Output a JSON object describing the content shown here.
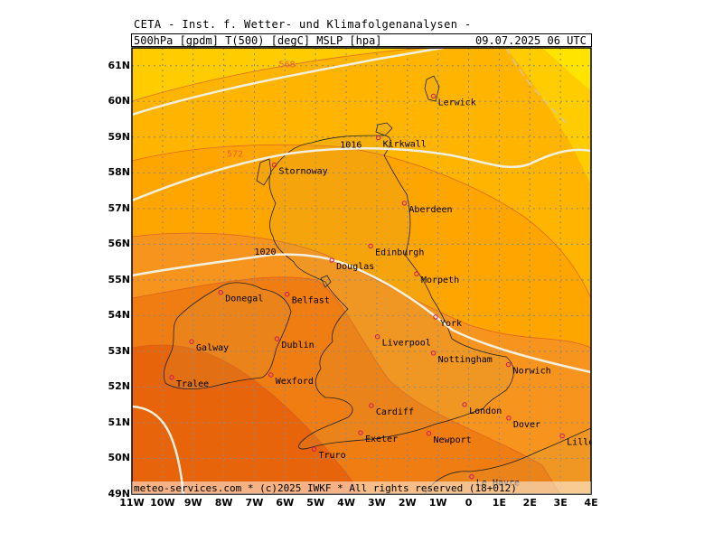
{
  "header": {
    "title": "CETA - Inst. f. Wetter- und Klimafolgenanalysen -",
    "parameters": "500hPa [gpdm] T(500) [degC] MSLP [hpa]",
    "valid_time": "09.07.2025 06 UTC"
  },
  "footer": {
    "credit": "meteo-services.com * (c)2025 IWKF * All rights reserved (18+012)"
  },
  "axes": {
    "lat_labels": [
      "61N",
      "60N",
      "59N",
      "58N",
      "57N",
      "56N",
      "55N",
      "54N",
      "53N",
      "52N",
      "51N",
      "50N",
      "49N"
    ],
    "lon_labels": [
      "11W",
      "10W",
      "9W",
      "8W",
      "7W",
      "6W",
      "5W",
      "4W",
      "3W",
      "2W",
      "1W",
      "0",
      "1E",
      "2E",
      "3E",
      "4E"
    ],
    "lat_values": [
      61,
      60,
      59,
      58,
      57,
      56,
      55,
      54,
      53,
      52,
      51,
      50,
      49
    ],
    "lon_values": [
      -11,
      -10,
      -9,
      -8,
      -7,
      -6,
      -5,
      -4,
      -3,
      -2,
      -1,
      0,
      1,
      2,
      3,
      4
    ],
    "lat_range": [
      49,
      61.5
    ],
    "lon_range": [
      -11,
      4
    ]
  },
  "contour_labels": {
    "geopotential": [
      {
        "text": "568",
        "lon": -6.2,
        "lat": 60.95
      },
      {
        "text": "572",
        "lon": -7.9,
        "lat": 58.45
      }
    ],
    "pressure": [
      {
        "text": "1016",
        "lon": -4.2,
        "lat": 58.7
      },
      {
        "text": "1020",
        "lon": -7.0,
        "lat": 55.7
      }
    ]
  },
  "cities": [
    {
      "name": "Lerwick",
      "lon": -1.15,
      "lat": 60.15
    },
    {
      "name": "Kirkwall",
      "lon": -2.95,
      "lat": 58.98
    },
    {
      "name": "Stornoway",
      "lon": -6.35,
      "lat": 58.22
    },
    {
      "name": "Aberdeen",
      "lon": -2.1,
      "lat": 57.15
    },
    {
      "name": "Edinburgh",
      "lon": -3.2,
      "lat": 55.95
    },
    {
      "name": "Douglas",
      "lon": -4.47,
      "lat": 55.55
    },
    {
      "name": "Morpeth",
      "lon": -1.7,
      "lat": 55.17
    },
    {
      "name": "Donegal",
      "lon": -8.1,
      "lat": 54.65
    },
    {
      "name": "Belfast",
      "lon": -5.93,
      "lat": 54.6
    },
    {
      "name": "York",
      "lon": -1.08,
      "lat": 53.96
    },
    {
      "name": "Liverpool",
      "lon": -2.98,
      "lat": 53.41
    },
    {
      "name": "Galway",
      "lon": -9.05,
      "lat": 53.27
    },
    {
      "name": "Dublin",
      "lon": -6.26,
      "lat": 53.35
    },
    {
      "name": "Nottingham",
      "lon": -1.15,
      "lat": 52.95
    },
    {
      "name": "Norwich",
      "lon": 1.3,
      "lat": 52.63
    },
    {
      "name": "Wexford",
      "lon": -6.46,
      "lat": 52.34
    },
    {
      "name": "Tralee",
      "lon": -9.7,
      "lat": 52.27
    },
    {
      "name": "Cardiff",
      "lon": -3.18,
      "lat": 51.48
    },
    {
      "name": "London",
      "lon": -0.13,
      "lat": 51.51
    },
    {
      "name": "Dover",
      "lon": 1.31,
      "lat": 51.13
    },
    {
      "name": "Exeter",
      "lon": -3.53,
      "lat": 50.72
    },
    {
      "name": "Newport",
      "lon": -1.3,
      "lat": 50.7
    },
    {
      "name": "Lille",
      "lon": 3.06,
      "lat": 50.63
    },
    {
      "name": "Truro",
      "lon": -5.05,
      "lat": 50.26
    },
    {
      "name": "Le Havre",
      "lon": 0.1,
      "lat": 49.49
    }
  ],
  "colors": {
    "c1": "#ffe400",
    "c2": "#ffcc00",
    "c3": "#ffb400",
    "c4": "#ffa500",
    "c5": "#f7941d",
    "c6": "#ef7d12",
    "c7": "#e8640a",
    "isobar": "#f4f0e0",
    "contour": "#d85a20",
    "coast": "#222222",
    "grid": "#888888",
    "city": "#d4145a"
  }
}
